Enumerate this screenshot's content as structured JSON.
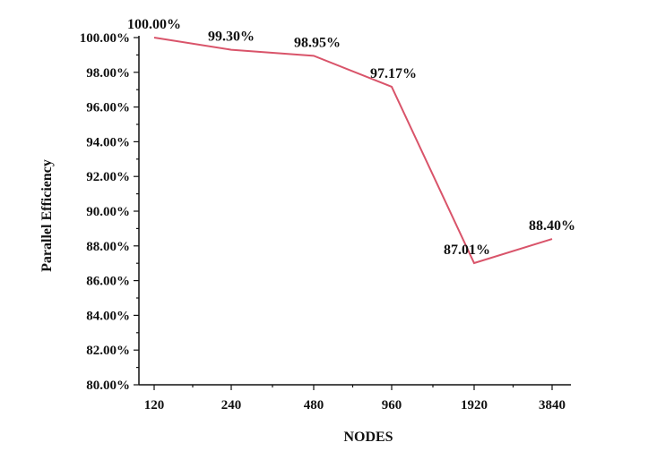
{
  "chart_data": {
    "type": "line",
    "title": "",
    "xlabel": "NODES",
    "ylabel": "Parallel Efficiency",
    "categories": [
      "120",
      "240",
      "480",
      "960",
      "1920",
      "3840"
    ],
    "series": [
      {
        "values": [
          100.0,
          99.3,
          98.95,
          97.17,
          87.01,
          88.4
        ],
        "labels": [
          "100.00%",
          "99.30%",
          "98.95%",
          "97.17%",
          "87.01%",
          "88.40%"
        ],
        "color": "#d9546a"
      }
    ],
    "ylim": [
      80,
      100
    ],
    "yticks": [
      80,
      82,
      84,
      86,
      88,
      90,
      92,
      94,
      96,
      98,
      100
    ],
    "ytick_labels": [
      "80.00%",
      "82.00%",
      "84.00%",
      "86.00%",
      "88.00%",
      "90.00%",
      "92.00%",
      "94.00%",
      "96.00%",
      "98.00%",
      "100.00%"
    ],
    "grid": false,
    "legend": "none"
  }
}
